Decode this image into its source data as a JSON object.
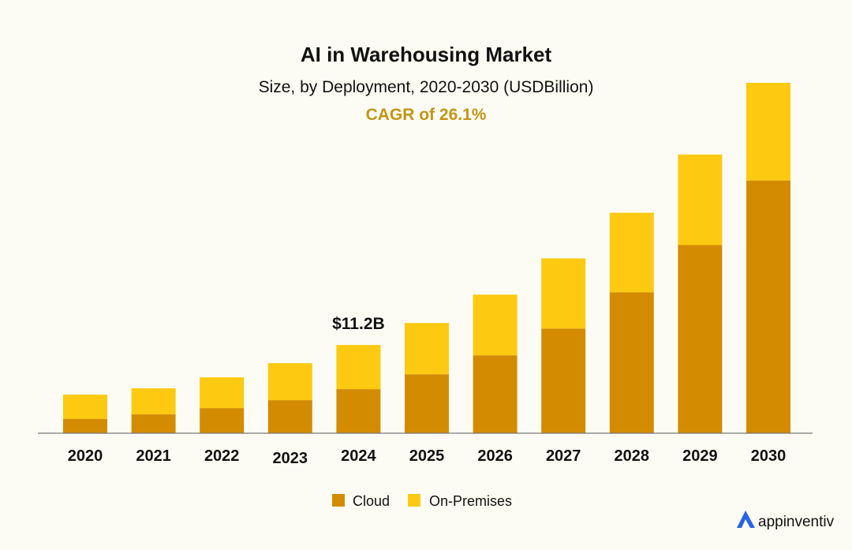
{
  "chart_data": {
    "type": "bar",
    "stacked": true,
    "title": "AI in Warehousing Market",
    "subtitle": "Size, by Deployment, 2020-2030 (USDBillion)",
    "annotation": "CAGR of 26.1%",
    "categories": [
      "2020",
      "2021",
      "2022",
      "2023",
      "2024",
      "2025",
      "2026",
      "2027",
      "2028",
      "2029",
      "2030"
    ],
    "series": [
      {
        "name": "Cloud",
        "color": "#d38c02",
        "values": [
          1.8,
          2.4,
          3.2,
          4.2,
          5.6,
          7.5,
          9.9,
          13.3,
          17.9,
          23.9,
          32.1
        ]
      },
      {
        "name": "On-Premises",
        "color": "#fdca11",
        "values": [
          3.1,
          3.3,
          3.9,
          4.7,
          5.6,
          6.5,
          7.7,
          8.9,
          10.1,
          11.5,
          12.4
        ]
      }
    ],
    "data_labels": [
      {
        "category": "2024",
        "text": "$11.2B"
      }
    ],
    "legend": "bottom-center",
    "ylim": [
      0,
      45
    ],
    "grid": false,
    "xlabel": "",
    "ylabel": ""
  },
  "brand": {
    "name": "appinventiv",
    "icon": "logo-icon",
    "color": "#2563eb"
  }
}
